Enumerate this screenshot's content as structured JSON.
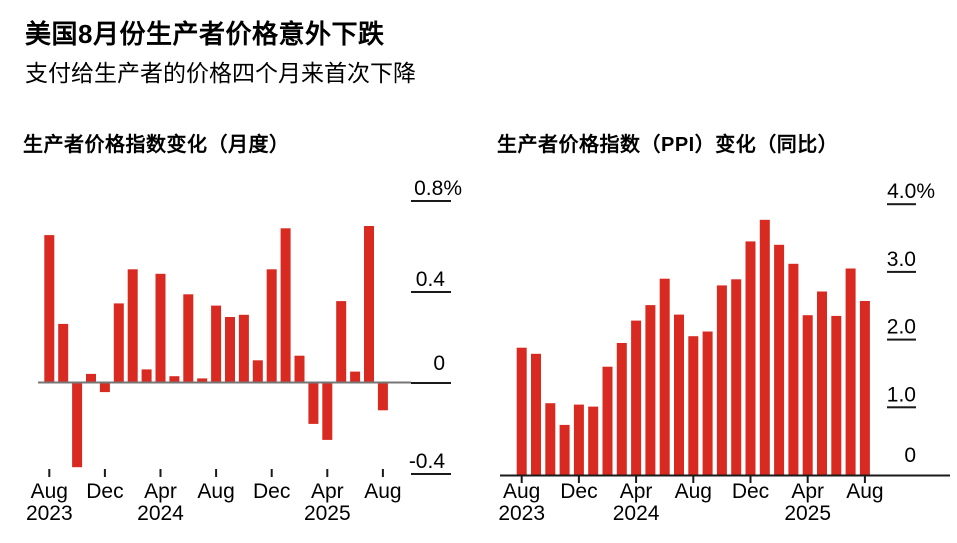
{
  "header": {
    "title": "美国8月份生产者价格意外下跌",
    "subtitle": "支付给生产者的价格四个月来首次下降"
  },
  "colors": {
    "bar_red": "#d92a22",
    "zero_line_gray": "#757575",
    "axis_black": "#1a1a1a",
    "text_black": "#000000"
  },
  "chart_data": [
    {
      "type": "bar",
      "title": "生产者价格指数变化（月度）",
      "unit": "%",
      "categories": [
        "Aug 2023",
        "Sep 2023",
        "Oct 2023",
        "Nov 2023",
        "Dec 2023",
        "Jan 2024",
        "Feb 2024",
        "Mar 2024",
        "Apr 2024",
        "May 2024",
        "Jun 2024",
        "Jul 2024",
        "Aug 2024",
        "Sep 2024",
        "Oct 2024",
        "Nov 2024",
        "Dec 2024",
        "Jan 2025",
        "Feb 2025",
        "Mar 2025",
        "Apr 2025",
        "May 2025",
        "Jun 2025",
        "Jul 2025",
        "Aug 2025"
      ],
      "values": [
        0.65,
        0.26,
        -0.37,
        0.04,
        -0.04,
        0.35,
        0.5,
        0.06,
        0.48,
        0.03,
        0.39,
        0.02,
        0.34,
        0.29,
        0.3,
        0.1,
        0.5,
        0.68,
        0.12,
        -0.18,
        -0.25,
        0.36,
        0.05,
        0.69,
        -0.12
      ],
      "ylim": [
        -0.5,
        0.9
      ],
      "grid": false,
      "legend": null,
      "yticks": [
        {
          "label": "0.8%",
          "value": 0.8
        },
        {
          "label": "0.4",
          "value": 0.4
        },
        {
          "label": "0",
          "value": 0
        },
        {
          "label": "-0.4",
          "value": -0.4
        }
      ],
      "xticks": [
        {
          "index": 0,
          "month": "Aug",
          "year": "2023"
        },
        {
          "index": 4,
          "month": "Dec",
          "year": ""
        },
        {
          "index": 8,
          "month": "Apr",
          "year": "2024"
        },
        {
          "index": 12,
          "month": "Aug",
          "year": ""
        },
        {
          "index": 16,
          "month": "Dec",
          "year": ""
        },
        {
          "index": 20,
          "month": "Apr",
          "year": "2025"
        },
        {
          "index": 24,
          "month": "Aug",
          "year": ""
        }
      ]
    },
    {
      "type": "bar",
      "title": "生产者价格指数（PPI）变化（同比）",
      "unit": "%",
      "categories": [
        "Aug 2023",
        "Sep 2023",
        "Oct 2023",
        "Nov 2023",
        "Dec 2023",
        "Jan 2024",
        "Feb 2024",
        "Mar 2024",
        "Apr 2024",
        "May 2024",
        "Jun 2024",
        "Jul 2024",
        "Aug 2024",
        "Sep 2024",
        "Oct 2024",
        "Nov 2024",
        "Dec 2024",
        "Jan 2025",
        "Feb 2025",
        "Mar 2025",
        "Apr 2025",
        "May 2025",
        "Jun 2025",
        "Jul 2025",
        "Aug 2025"
      ],
      "values": [
        1.88,
        1.79,
        1.06,
        0.74,
        1.04,
        1.01,
        1.6,
        1.95,
        2.28,
        2.51,
        2.9,
        2.37,
        2.05,
        2.12,
        2.8,
        2.89,
        3.45,
        3.77,
        3.4,
        3.12,
        2.36,
        2.71,
        2.35,
        3.05,
        2.57
      ],
      "ylim": [
        0,
        4.2
      ],
      "grid": false,
      "legend": null,
      "yticks": [
        {
          "label": "4.0%",
          "value": 4
        },
        {
          "label": "3.0",
          "value": 3
        },
        {
          "label": "2.0",
          "value": 2
        },
        {
          "label": "1.0",
          "value": 1
        },
        {
          "label": "0",
          "value": 0
        }
      ],
      "xticks": [
        {
          "index": 0,
          "month": "Aug",
          "year": "2023"
        },
        {
          "index": 4,
          "month": "Dec",
          "year": ""
        },
        {
          "index": 8,
          "month": "Apr",
          "year": "2024"
        },
        {
          "index": 12,
          "month": "Aug",
          "year": ""
        },
        {
          "index": 16,
          "month": "Dec",
          "year": ""
        },
        {
          "index": 20,
          "month": "Apr",
          "year": "2025"
        },
        {
          "index": 24,
          "month": "Aug",
          "year": ""
        }
      ]
    }
  ]
}
